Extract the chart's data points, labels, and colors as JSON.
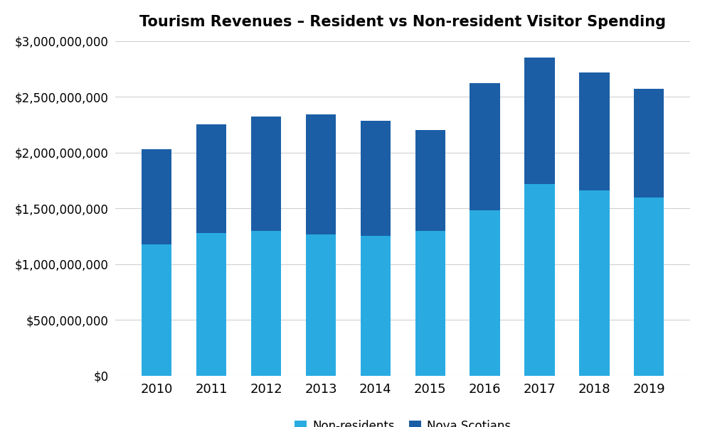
{
  "years": [
    "2010",
    "2011",
    "2012",
    "2013",
    "2014",
    "2015",
    "2016",
    "2017",
    "2018",
    "2019"
  ],
  "non_residents": [
    1175000000,
    1280000000,
    1300000000,
    1265000000,
    1255000000,
    1295000000,
    1480000000,
    1720000000,
    1660000000,
    1595000000
  ],
  "nova_scotians": [
    855000000,
    970000000,
    1025000000,
    1075000000,
    1030000000,
    910000000,
    1140000000,
    1130000000,
    1060000000,
    975000000
  ],
  "color_non_residents": "#29ABE2",
  "color_nova_scotians": "#1B5EA6",
  "title": "Tourism Revenues – Resident vs Non-resident Visitor Spending",
  "legend_non_residents": "Non-residents",
  "legend_nova_scotians": "Nova Scotians",
  "ylim": [
    0,
    3000000000
  ],
  "yticks": [
    0,
    500000000,
    1000000000,
    1500000000,
    2000000000,
    2500000000,
    3000000000
  ],
  "background_color": "#ffffff",
  "grid_color": "#d0d0d0"
}
